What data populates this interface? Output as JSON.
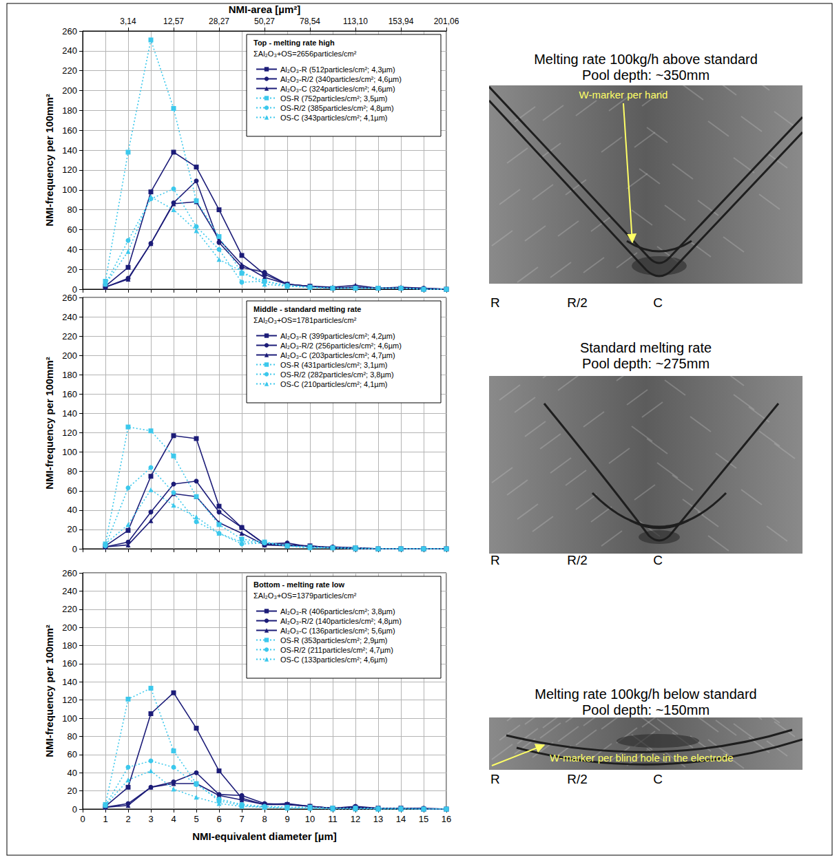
{
  "chart_data": [
    {
      "type": "line",
      "title": "Top - melting rate high",
      "subtitle": "ΣAl₂O₃+OS=2656particles/cm²",
      "y_label": "NMI-frequency per 100mm²",
      "x2_label": "NMI-area [µm²]",
      "x": [
        1,
        2,
        3,
        4,
        5,
        6,
        7,
        8,
        9,
        10,
        11,
        12,
        13,
        14,
        15,
        16
      ],
      "xlim": [
        0,
        16
      ],
      "xticks": [
        0,
        1,
        2,
        3,
        4,
        5,
        6,
        7,
        8,
        9,
        10,
        11,
        12,
        13,
        14,
        15,
        16
      ],
      "x2ticks": [
        {
          "value": 2,
          "label": "3,14"
        },
        {
          "value": 4,
          "label": "12,57"
        },
        {
          "value": 6,
          "label": "28,27"
        },
        {
          "value": 8,
          "label": "50,27"
        },
        {
          "value": 10,
          "label": "78,54"
        },
        {
          "value": 12,
          "label": "113,10"
        },
        {
          "value": 14,
          "label": "153,94"
        },
        {
          "value": 16,
          "label": "201,06"
        }
      ],
      "ylim": [
        0,
        260
      ],
      "yticks": [
        0,
        20,
        40,
        60,
        80,
        100,
        120,
        140,
        160,
        180,
        200,
        220,
        240,
        260
      ],
      "grid": true,
      "legend": "upper right",
      "tick_labels": "y",
      "series": [
        {
          "name": "Al₂O₃-R (512particles/cm²; 4,3µm)",
          "color": "#1c1c78",
          "marker": "square",
          "line_style": "solid",
          "values": [
            3,
            22,
            98,
            138,
            123,
            80,
            34,
            15,
            5,
            3,
            1,
            2,
            1,
            1,
            0,
            0
          ]
        },
        {
          "name": "Al₂O₃-R/2 (340particles/cm²; 4,6µm)",
          "color": "#1c1c78",
          "marker": "circle",
          "line_style": "solid",
          "values": [
            2,
            11,
            46,
            87,
            109,
            47,
            22,
            17,
            5,
            3,
            1,
            2,
            1,
            1,
            1,
            0
          ]
        },
        {
          "name": "Al₂O₃-C (324particles/cm²; 4,6µm)",
          "color": "#1c1c78",
          "marker": "triangle",
          "line_style": "solid",
          "values": [
            2,
            10,
            46,
            86,
            88,
            50,
            25,
            12,
            5,
            3,
            2,
            4,
            1,
            2,
            1,
            0
          ]
        },
        {
          "name": "OS-R (752particles/cm²; 3,5µm)",
          "color": "#3cc8ec",
          "marker": "square",
          "line_style": "dotted",
          "values": [
            8,
            138,
            251,
            182,
            89,
            53,
            16,
            8,
            3,
            2,
            1,
            1,
            1,
            1,
            0,
            0
          ]
        },
        {
          "name": "OS-R/2 (385particles/cm²; 4,8µm)",
          "color": "#3cc8ec",
          "marker": "circle",
          "line_style": "dotted",
          "values": [
            5,
            49,
            91,
            101,
            63,
            40,
            7,
            8,
            4,
            2,
            1,
            1,
            1,
            1,
            0,
            0
          ]
        },
        {
          "name": "OS-C (343particles/cm²; 4,1µm)",
          "color": "#3cc8ec",
          "marker": "triangle",
          "line_style": "dotted",
          "values": [
            5,
            38,
            93,
            80,
            59,
            30,
            18,
            5,
            3,
            2,
            1,
            1,
            1,
            1,
            0,
            0
          ]
        }
      ]
    },
    {
      "type": "line",
      "title": "Middle - standard melting rate",
      "subtitle": "ΣAl₂O₃+OS=1781particles/cm²",
      "y_label": "NMI-frequency per 100mm²",
      "x": [
        1,
        2,
        3,
        4,
        5,
        6,
        7,
        8,
        9,
        10,
        11,
        12,
        13,
        14,
        15,
        16
      ],
      "xlim": [
        0,
        16
      ],
      "xticks": [
        0,
        1,
        2,
        3,
        4,
        5,
        6,
        7,
        8,
        9,
        10,
        11,
        12,
        13,
        14,
        15,
        16
      ],
      "ylim": [
        0,
        260
      ],
      "yticks": [
        0,
        20,
        40,
        60,
        80,
        100,
        120,
        140,
        160,
        180,
        200,
        220,
        240,
        260
      ],
      "grid": true,
      "legend": "upper right",
      "tick_labels": "y",
      "series": [
        {
          "name": "Al₂O₃-R (399particles/cm²; 4,2µm)",
          "color": "#1c1c78",
          "marker": "square",
          "line_style": "solid",
          "values": [
            3,
            19,
            75,
            117,
            114,
            44,
            22,
            5,
            4,
            3,
            1,
            1,
            0,
            0,
            0,
            0
          ]
        },
        {
          "name": "Al₂O₃-R/2 (256particles/cm²; 4,6µm)",
          "color": "#1c1c78",
          "marker": "circle",
          "line_style": "solid",
          "values": [
            2,
            7,
            38,
            67,
            70,
            38,
            22,
            5,
            6,
            2,
            2,
            1,
            0,
            0,
            0,
            0
          ]
        },
        {
          "name": "Al₂O₃-C (203particles/cm²; 4,7µm)",
          "color": "#1c1c78",
          "marker": "triangle",
          "line_style": "solid",
          "values": [
            2,
            4,
            29,
            57,
            54,
            27,
            16,
            4,
            3,
            3,
            1,
            0,
            0,
            0,
            0,
            0
          ]
        },
        {
          "name": "OS-R (431particles/cm²; 3,1µm)",
          "color": "#3cc8ec",
          "marker": "square",
          "line_style": "dotted",
          "values": [
            5,
            126,
            122,
            96,
            54,
            25,
            10,
            7,
            3,
            2,
            1,
            1,
            0,
            0,
            0,
            0
          ]
        },
        {
          "name": "OS-R/2 (282particles/cm²; 3,8µm)",
          "color": "#3cc8ec",
          "marker": "circle",
          "line_style": "dotted",
          "values": [
            3,
            63,
            84,
            58,
            28,
            16,
            5,
            6,
            3,
            1,
            1,
            0,
            0,
            0,
            0,
            0
          ]
        },
        {
          "name": "OS-C (210particles/cm²; 4,1µm)",
          "color": "#3cc8ec",
          "marker": "triangle",
          "line_style": "dotted",
          "values": [
            5,
            25,
            61,
            45,
            33,
            16,
            7,
            7,
            3,
            1,
            1,
            0,
            0,
            0,
            0,
            0
          ]
        }
      ]
    },
    {
      "type": "line",
      "title": "Bottom - melting rate low",
      "subtitle": "ΣAl₂O₃+OS=1379particles/cm²",
      "y_label": "NMI-frequency per 100mm²",
      "x_label": "NMI-equivalent diameter [µm]",
      "x": [
        1,
        2,
        3,
        4,
        5,
        6,
        7,
        8,
        9,
        10,
        11,
        12,
        13,
        14,
        15,
        16
      ],
      "xlim": [
        0,
        16
      ],
      "xticks": [
        0,
        1,
        2,
        3,
        4,
        5,
        6,
        7,
        8,
        9,
        10,
        11,
        12,
        13,
        14,
        15,
        16
      ],
      "ylim": [
        0,
        260
      ],
      "yticks": [
        0,
        20,
        40,
        60,
        80,
        100,
        120,
        140,
        160,
        180,
        200,
        220,
        240,
        260
      ],
      "grid": true,
      "legend": "upper right",
      "series": [
        {
          "name": "Al₂O₃-R (406particles/cm²; 3,8µm)",
          "color": "#1c1c78",
          "marker": "square",
          "line_style": "solid",
          "values": [
            3,
            24,
            105,
            128,
            89,
            42,
            12,
            5,
            5,
            3,
            1,
            2,
            1,
            1,
            0,
            0
          ]
        },
        {
          "name": "Al₂O₃-R/2 (140particles/cm²; 4,8µm)",
          "color": "#1c1c78",
          "marker": "circle",
          "line_style": "solid",
          "values": [
            2,
            6,
            24,
            30,
            40,
            16,
            15,
            6,
            5,
            3,
            1,
            3,
            1,
            1,
            1,
            0
          ]
        },
        {
          "name": "Al₂O₃-C (136particles/cm²; 5,6µm)",
          "color": "#1c1c78",
          "marker": "triangle",
          "line_style": "solid",
          "values": [
            2,
            4,
            24,
            28,
            28,
            15,
            10,
            5,
            6,
            3,
            1,
            1,
            1,
            1,
            0,
            0
          ]
        },
        {
          "name": "OS-R (353particles/cm²; 2,9µm)",
          "color": "#3cc8ec",
          "marker": "square",
          "line_style": "dotted",
          "values": [
            5,
            121,
            133,
            64,
            28,
            9,
            4,
            2,
            2,
            2,
            1,
            1,
            0,
            0,
            0,
            0
          ]
        },
        {
          "name": "OS-R/2 (211particles/cm²; 4,7µm)",
          "color": "#3cc8ec",
          "marker": "circle",
          "line_style": "dotted",
          "values": [
            4,
            46,
            53,
            46,
            27,
            11,
            5,
            3,
            2,
            1,
            1,
            1,
            1,
            1,
            0,
            0
          ]
        },
        {
          "name": "OS-C (133particles/cm²; 4,6µm)",
          "color": "#3cc8ec",
          "marker": "triangle",
          "line_style": "dotted",
          "values": [
            4,
            32,
            42,
            22,
            13,
            6,
            3,
            2,
            1,
            1,
            0,
            0,
            0,
            0,
            0,
            0
          ]
        }
      ]
    }
  ],
  "macro_etch_sections": [
    {
      "title": "Melting rate 100kg/h above standard",
      "pool_depth": "Pool depth: ~350mm",
      "annotation": "W-marker per hand",
      "position_labels": [
        "R",
        "R/2",
        "C"
      ]
    },
    {
      "title": "Standard melting rate",
      "pool_depth": "Pool depth: ~275mm",
      "position_labels": [
        "R",
        "R/2",
        "C"
      ]
    },
    {
      "title": "Melting rate 100kg/h below standard",
      "pool_depth": "Pool depth: ~150mm",
      "annotation": "W-marker per blind hole in the electrode",
      "position_labels": [
        "R",
        "R/2",
        "C"
      ]
    }
  ]
}
